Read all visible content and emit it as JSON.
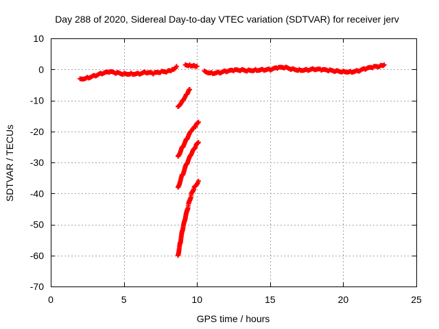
{
  "chart_data": {
    "type": "scatter",
    "title": "Day 288 of 2020, Sidereal Day-to-day VTEC variation (SDTVAR) for receiver jerv",
    "xlabel": "GPS time / hours",
    "ylabel": "SDTVAR / TECUs",
    "xlim": [
      0,
      25
    ],
    "ylim": [
      -70,
      10
    ],
    "xticks": [
      0,
      5,
      10,
      15,
      20,
      25
    ],
    "yticks": [
      10,
      0,
      -10,
      -20,
      -30,
      -40,
      -50,
      -60,
      -70
    ],
    "xtick_labels": [
      "0",
      "5",
      "10",
      "15",
      "20",
      "25"
    ],
    "ytick_labels": [
      "10",
      "0",
      "-10",
      "-20",
      "-30",
      "-40",
      "-50",
      "-60",
      "-70"
    ],
    "grid": true,
    "marker": "plus",
    "color": "#ff0000",
    "series": [
      {
        "name": "main-trace-early",
        "points": [
          [
            2.0,
            -3
          ],
          [
            2.5,
            -2.5
          ],
          [
            3.0,
            -2
          ],
          [
            3.5,
            -1.5
          ],
          [
            4.0,
            -1
          ],
          [
            4.5,
            -1.2
          ],
          [
            5.0,
            -1.3
          ],
          [
            5.5,
            -1.2
          ],
          [
            6.0,
            -1.3
          ],
          [
            6.5,
            -1.1
          ],
          [
            7.0,
            -1.5
          ],
          [
            7.5,
            -1
          ],
          [
            8.0,
            -0.5
          ],
          [
            8.3,
            0
          ],
          [
            8.6,
            1
          ]
        ]
      },
      {
        "name": "main-trace-mid",
        "points": [
          [
            9.2,
            1.5
          ],
          [
            9.5,
            1.5
          ],
          [
            9.8,
            1.3
          ],
          [
            10.0,
            1
          ]
        ]
      },
      {
        "name": "main-trace-late",
        "points": [
          [
            10.5,
            -0.5
          ],
          [
            11.0,
            -1
          ],
          [
            11.5,
            -1
          ],
          [
            12.0,
            -0.8
          ],
          [
            12.5,
            -0.5
          ],
          [
            13.0,
            -0.3
          ],
          [
            13.5,
            -0.2
          ],
          [
            14.0,
            0
          ],
          [
            14.5,
            0
          ],
          [
            15.0,
            -0.2
          ],
          [
            15.5,
            0.3
          ],
          [
            16.0,
            0.5
          ],
          [
            16.5,
            0.2
          ],
          [
            17.0,
            0
          ],
          [
            17.5,
            0
          ],
          [
            18.0,
            0
          ],
          [
            18.5,
            -0.3
          ],
          [
            19.0,
            -0.5
          ],
          [
            19.5,
            -0.5
          ],
          [
            20.0,
            -0.5
          ],
          [
            20.5,
            -0.6
          ],
          [
            21.0,
            -0.5
          ],
          [
            21.5,
            0
          ],
          [
            22.0,
            0.5
          ],
          [
            22.5,
            1
          ],
          [
            22.8,
            1.5
          ]
        ]
      },
      {
        "name": "drop-segment-1",
        "points": [
          [
            8.7,
            -12
          ],
          [
            9.0,
            -10
          ],
          [
            9.3,
            -8
          ],
          [
            9.5,
            -6.5
          ]
        ]
      },
      {
        "name": "drop-segment-2",
        "points": [
          [
            8.7,
            -28
          ],
          [
            9.0,
            -25
          ],
          [
            9.3,
            -22.5
          ],
          [
            9.6,
            -20
          ],
          [
            9.9,
            -18.5
          ],
          [
            10.1,
            -17
          ]
        ]
      },
      {
        "name": "drop-segment-3",
        "points": [
          [
            8.7,
            -38
          ],
          [
            9.0,
            -34
          ],
          [
            9.3,
            -30.5
          ],
          [
            9.6,
            -27.5
          ],
          [
            9.9,
            -25
          ],
          [
            10.1,
            -23.5
          ]
        ]
      },
      {
        "name": "drop-segment-4",
        "points": [
          [
            8.7,
            -60
          ],
          [
            8.85,
            -56
          ],
          [
            9.0,
            -52
          ],
          [
            9.2,
            -48
          ],
          [
            9.4,
            -44
          ],
          [
            9.6,
            -40.5
          ],
          [
            9.8,
            -38
          ],
          [
            10.1,
            -36
          ]
        ]
      }
    ]
  }
}
